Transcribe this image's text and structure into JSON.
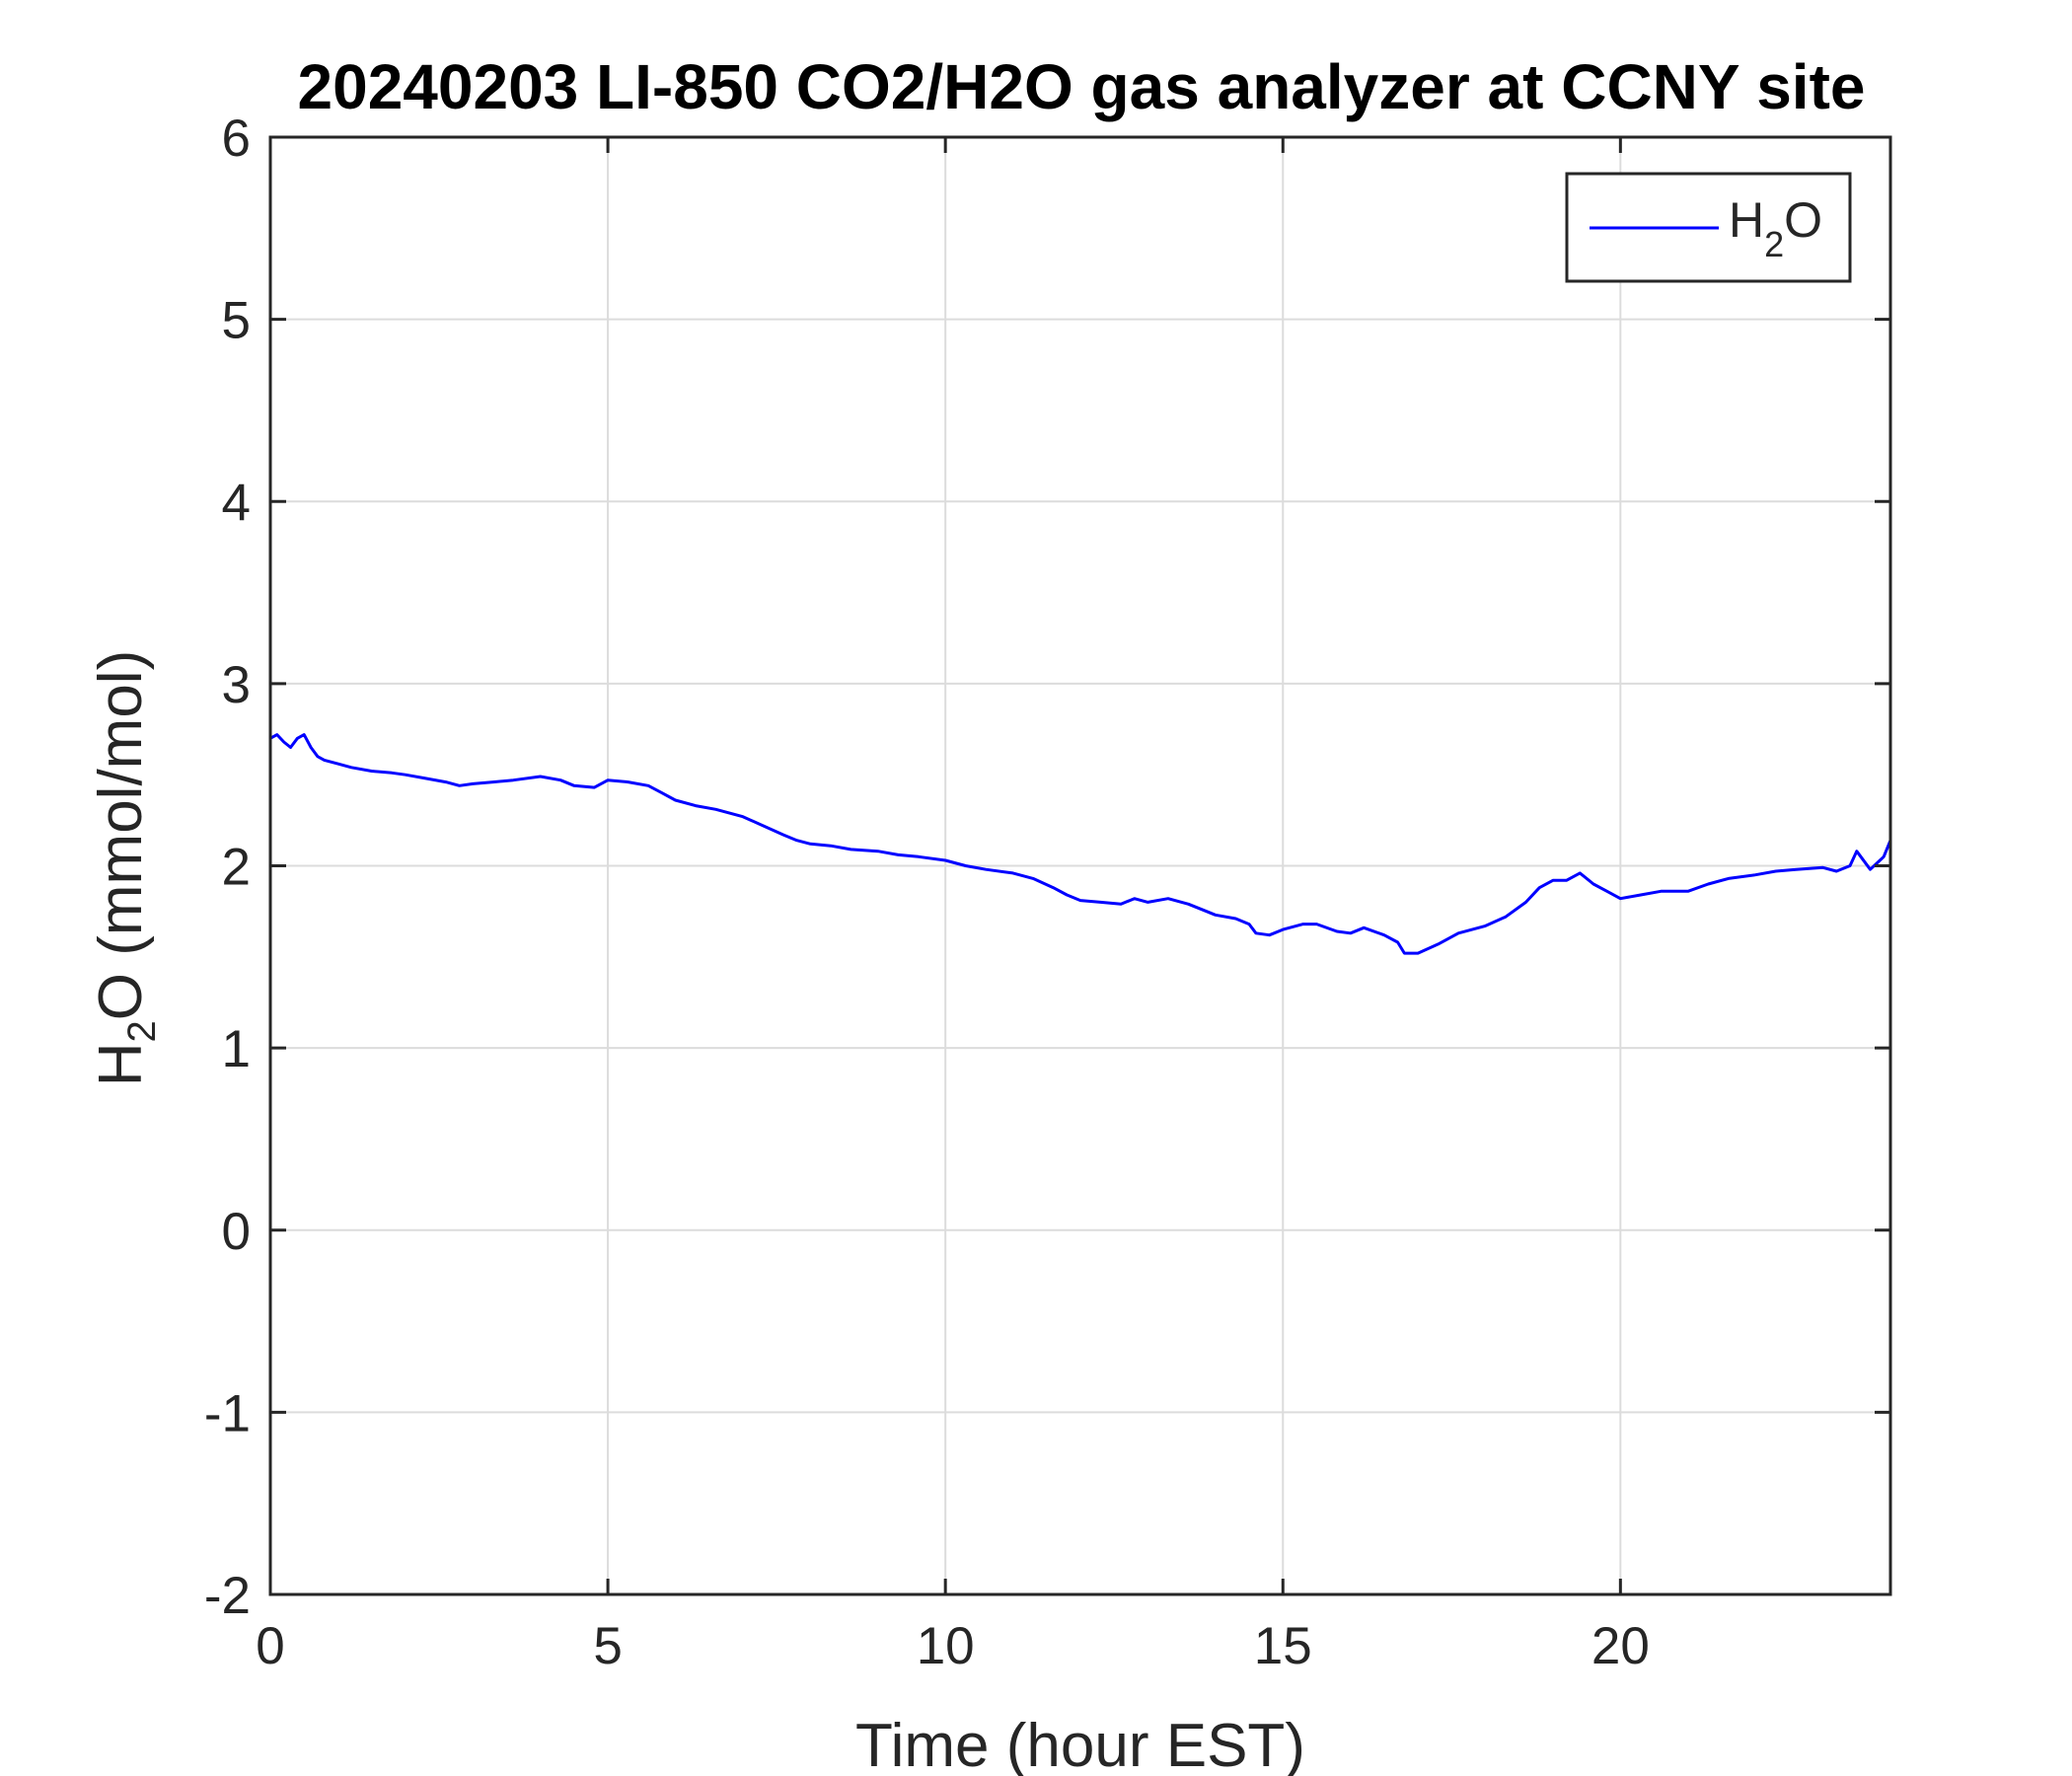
{
  "chart_data": {
    "type": "line",
    "title": "20240203 LI-850 CO2/H2O gas analyzer at CCNY site",
    "xlabel": "Time (hour EST)",
    "ylabel": {
      "main": "H",
      "sub": "2",
      "rest": "O (mmol/mol)"
    },
    "xlim": [
      0,
      24
    ],
    "ylim": [
      -2,
      6
    ],
    "xticks": [
      0,
      5,
      10,
      15,
      20
    ],
    "yticks": [
      -2,
      -1,
      0,
      1,
      2,
      3,
      4,
      5,
      6
    ],
    "grid": true,
    "legend": {
      "placement": "top-right",
      "entries": [
        {
          "main": "H",
          "sub": "2",
          "rest": "O"
        }
      ]
    },
    "series": [
      {
        "label": {
          "main": "H",
          "sub": "2",
          "rest": "O"
        },
        "color": "#0000ff",
        "x": [
          0,
          0.1,
          0.2,
          0.3,
          0.4,
          0.5,
          0.6,
          0.7,
          0.8,
          1.0,
          1.2,
          1.5,
          1.8,
          2.0,
          2.3,
          2.6,
          2.8,
          3.0,
          3.3,
          3.6,
          4.0,
          4.3,
          4.5,
          4.8,
          5.0,
          5.3,
          5.6,
          5.8,
          6.0,
          6.3,
          6.6,
          7.0,
          7.3,
          7.6,
          7.8,
          8.0,
          8.3,
          8.6,
          9.0,
          9.3,
          9.6,
          10.0,
          10.3,
          10.6,
          11.0,
          11.3,
          11.6,
          11.8,
          12.0,
          12.3,
          12.6,
          12.8,
          13.0,
          13.3,
          13.6,
          13.8,
          14.0,
          14.3,
          14.5,
          14.6,
          14.8,
          15.0,
          15.3,
          15.5,
          15.8,
          16.0,
          16.2,
          16.5,
          16.7,
          16.8,
          17.0,
          17.3,
          17.6,
          18.0,
          18.3,
          18.6,
          18.8,
          19.0,
          19.2,
          19.4,
          19.6,
          19.8,
          20.0,
          20.3,
          20.6,
          21.0,
          21.3,
          21.6,
          22.0,
          22.3,
          22.6,
          23.0,
          23.2,
          23.4,
          23.5,
          23.7,
          23.9,
          24.0
        ],
        "y": [
          2.7,
          2.72,
          2.68,
          2.65,
          2.7,
          2.72,
          2.65,
          2.6,
          2.58,
          2.56,
          2.54,
          2.52,
          2.51,
          2.5,
          2.48,
          2.46,
          2.44,
          2.45,
          2.46,
          2.47,
          2.49,
          2.47,
          2.44,
          2.43,
          2.47,
          2.46,
          2.44,
          2.4,
          2.36,
          2.33,
          2.31,
          2.27,
          2.22,
          2.17,
          2.14,
          2.12,
          2.11,
          2.09,
          2.08,
          2.06,
          2.05,
          2.03,
          2.0,
          1.98,
          1.96,
          1.93,
          1.88,
          1.84,
          1.81,
          1.8,
          1.79,
          1.82,
          1.8,
          1.82,
          1.79,
          1.76,
          1.73,
          1.71,
          1.68,
          1.63,
          1.62,
          1.65,
          1.68,
          1.68,
          1.64,
          1.63,
          1.66,
          1.62,
          1.58,
          1.52,
          1.52,
          1.57,
          1.63,
          1.67,
          1.72,
          1.8,
          1.88,
          1.92,
          1.92,
          1.96,
          1.9,
          1.86,
          1.82,
          1.84,
          1.86,
          1.86,
          1.9,
          1.93,
          1.95,
          1.97,
          1.98,
          1.99,
          1.97,
          2.0,
          2.08,
          1.98,
          2.05,
          2.14
        ]
      }
    ]
  }
}
